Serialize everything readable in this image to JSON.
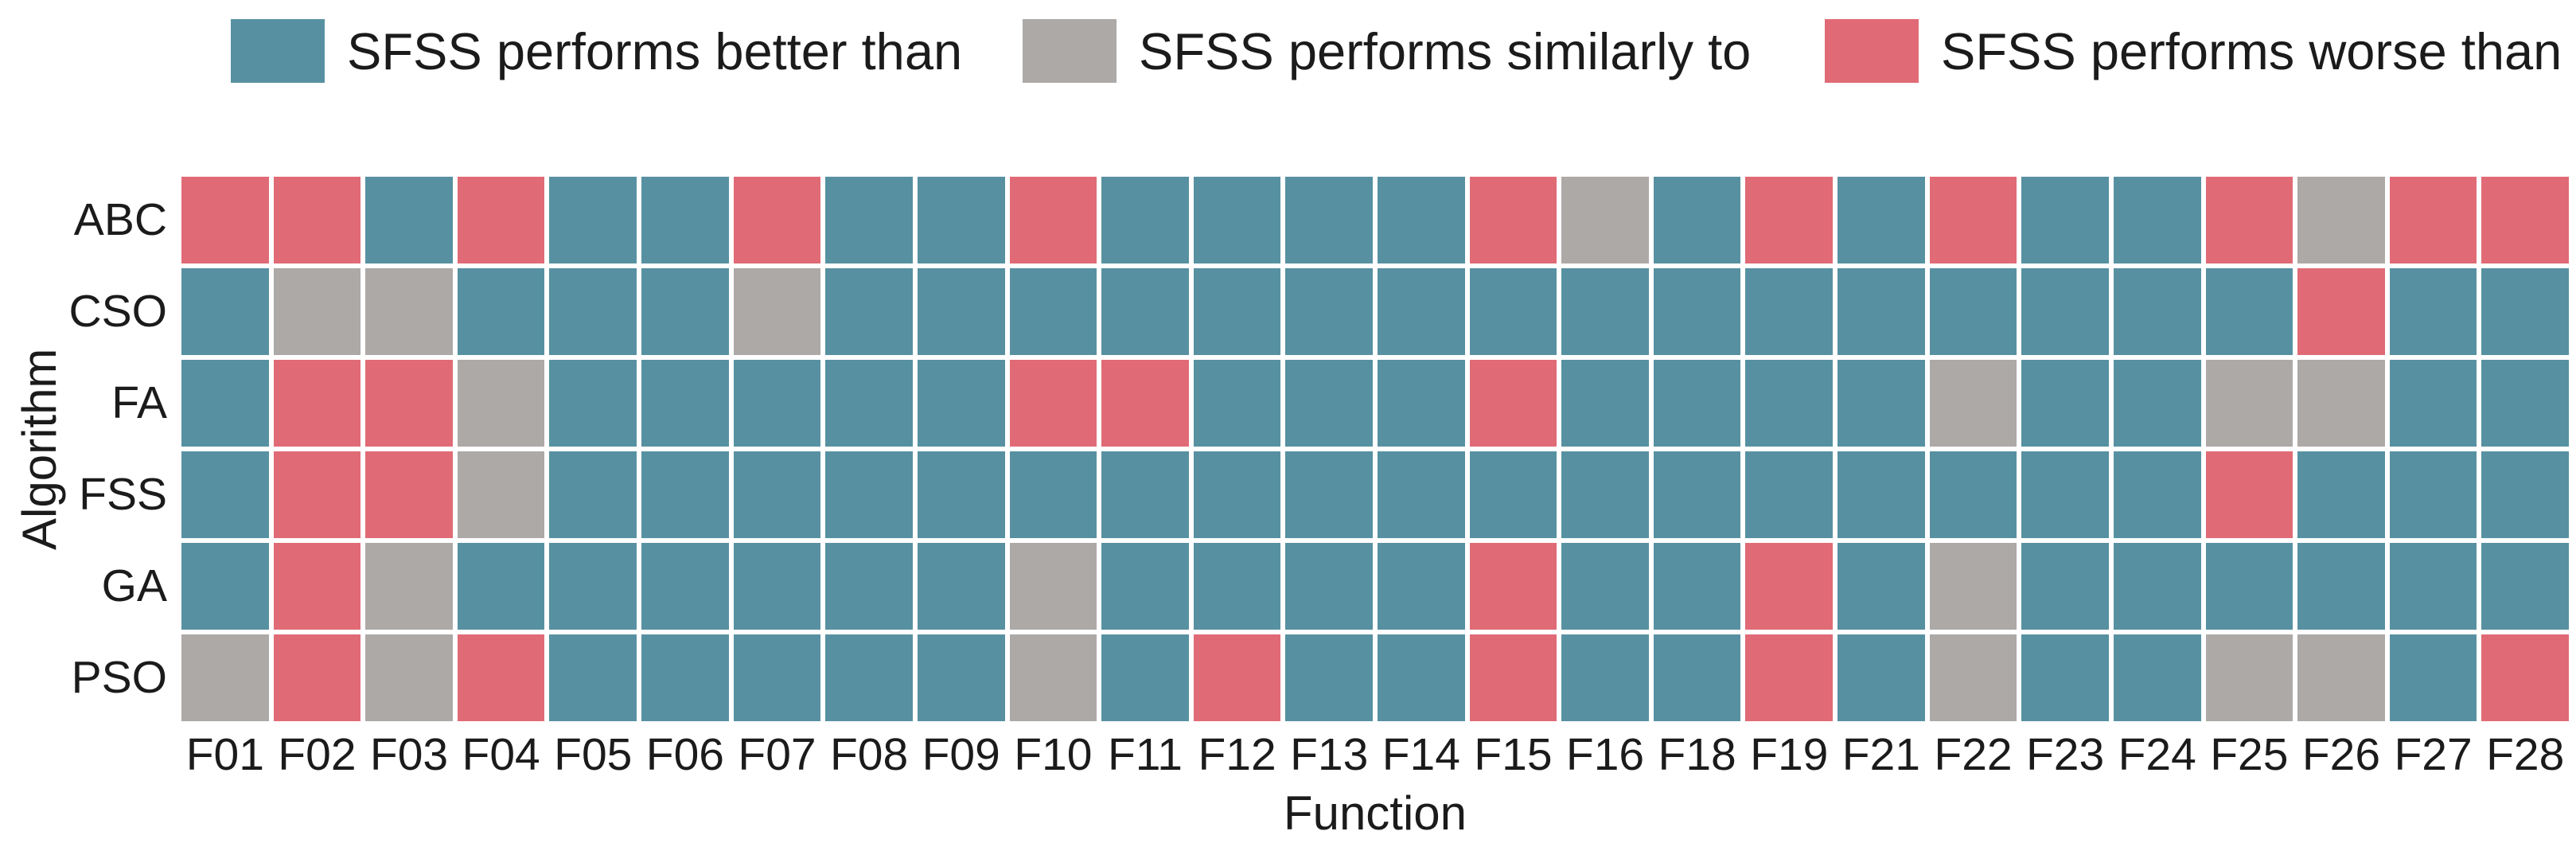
{
  "legend": {
    "items": [
      {
        "key": "better",
        "label": "SFSS performs better than"
      },
      {
        "key": "similar",
        "label": "SFSS performs similarly to"
      },
      {
        "key": "worse",
        "label": "SFSS performs worse than"
      }
    ]
  },
  "chart_data": {
    "type": "heatmap",
    "title": "",
    "xlabel": "Function",
    "ylabel": "Algorithm",
    "legend_position": "top",
    "grid": "white-gaps-between-cells",
    "colors": {
      "better": "#5791A1",
      "similar": "#ADA9A7",
      "worse": "#E06B76"
    },
    "columns": [
      "F01",
      "F02",
      "F03",
      "F04",
      "F05",
      "F06",
      "F07",
      "F08",
      "F09",
      "F10",
      "F11",
      "F12",
      "F13",
      "F14",
      "F15",
      "F16",
      "F18",
      "F19",
      "F21",
      "F22",
      "F23",
      "F24",
      "F25",
      "F26",
      "F27",
      "F28"
    ],
    "rows": [
      "ABC",
      "CSO",
      "FA",
      "FSS",
      "GA",
      "PSO"
    ],
    "values": [
      [
        "worse",
        "worse",
        "better",
        "worse",
        "better",
        "better",
        "worse",
        "better",
        "better",
        "worse",
        "better",
        "better",
        "better",
        "better",
        "worse",
        "similar",
        "better",
        "worse",
        "better",
        "worse",
        "better",
        "better",
        "worse",
        "similar",
        "worse",
        "worse"
      ],
      [
        "better",
        "similar",
        "similar",
        "better",
        "better",
        "better",
        "similar",
        "better",
        "better",
        "better",
        "better",
        "better",
        "better",
        "better",
        "better",
        "better",
        "better",
        "better",
        "better",
        "better",
        "better",
        "better",
        "better",
        "worse",
        "better",
        "better"
      ],
      [
        "better",
        "worse",
        "worse",
        "similar",
        "better",
        "better",
        "better",
        "better",
        "better",
        "worse",
        "worse",
        "better",
        "better",
        "better",
        "worse",
        "better",
        "better",
        "better",
        "better",
        "similar",
        "better",
        "better",
        "similar",
        "similar",
        "better",
        "better"
      ],
      [
        "better",
        "worse",
        "worse",
        "similar",
        "better",
        "better",
        "better",
        "better",
        "better",
        "better",
        "better",
        "better",
        "better",
        "better",
        "better",
        "better",
        "better",
        "better",
        "better",
        "better",
        "better",
        "better",
        "worse",
        "better",
        "better",
        "better"
      ],
      [
        "better",
        "worse",
        "similar",
        "better",
        "better",
        "better",
        "better",
        "better",
        "better",
        "similar",
        "better",
        "better",
        "better",
        "better",
        "worse",
        "better",
        "better",
        "worse",
        "better",
        "similar",
        "better",
        "better",
        "better",
        "better",
        "better",
        "better"
      ],
      [
        "similar",
        "worse",
        "similar",
        "worse",
        "better",
        "better",
        "better",
        "better",
        "better",
        "similar",
        "better",
        "worse",
        "better",
        "better",
        "worse",
        "better",
        "better",
        "worse",
        "better",
        "similar",
        "better",
        "better",
        "similar",
        "similar",
        "better",
        "worse"
      ]
    ]
  }
}
